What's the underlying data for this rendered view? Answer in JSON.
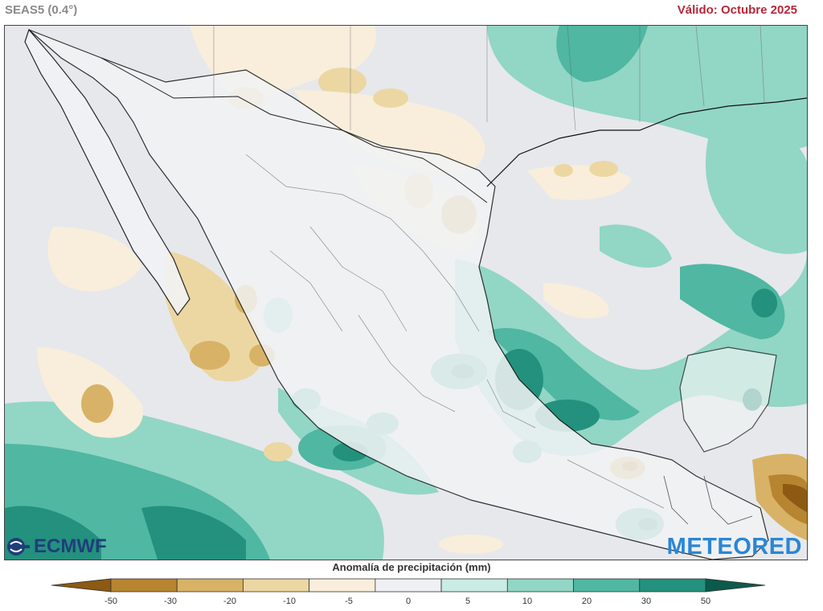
{
  "header": {
    "model": "SEAS5 (0.4°)",
    "valid": "Válido: Octubre 2025"
  },
  "logos": {
    "left": "ECMWF",
    "right": "METEORED"
  },
  "legend": {
    "title": "Anomalía de precipitación (mm)",
    "ticks": [
      "-50",
      "-30",
      "-20",
      "-10",
      "-5",
      "0",
      "5",
      "10",
      "20",
      "30",
      "50"
    ],
    "colors": [
      "#8c5a12",
      "#b7842f",
      "#d8b266",
      "#ecd7a3",
      "#f8eedb",
      "#eef0f3",
      "#c9ece4",
      "#92d6c6",
      "#4fb7a2",
      "#23917d",
      "#0b5b4c"
    ]
  },
  "map": {
    "region": "Mexico and Central America",
    "data": "precipitation anomaly forecast"
  }
}
